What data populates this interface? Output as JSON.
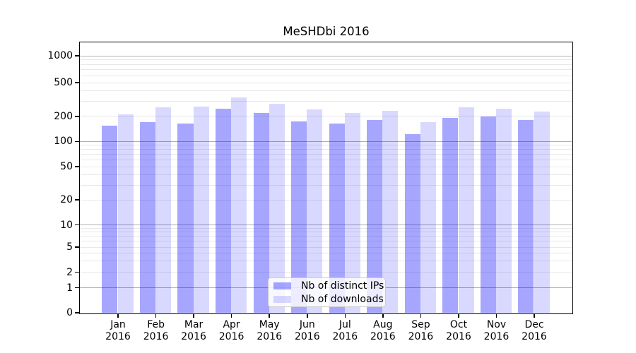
{
  "title": "MeSHDbi 2016",
  "chart_data": {
    "type": "bar",
    "title": "MeSHDbi 2016",
    "categories": [
      "Jan",
      "Feb",
      "Mar",
      "Apr",
      "May",
      "Jun",
      "Jul",
      "Aug",
      "Sep",
      "Oct",
      "Nov",
      "Dec"
    ],
    "year_label": "2016",
    "series": [
      {
        "name": "Nb of distinct IPs",
        "color": "#0000ff",
        "alpha": 0.35,
        "rendered_color": "#a6a6ff",
        "values": [
          155,
          169,
          163,
          248,
          220,
          175,
          164,
          181,
          123,
          192,
          198,
          180
        ]
      },
      {
        "name": "Nb of downloads",
        "color": "#0000ff",
        "alpha": 0.15,
        "rendered_color": "#d9d9ff",
        "values": [
          213,
          256,
          260,
          333,
          284,
          243,
          219,
          232,
          169,
          256,
          248,
          229
        ]
      }
    ],
    "xlabel": "",
    "ylabel": "",
    "yscale": "symlog",
    "yticks": [
      0,
      1,
      2,
      5,
      10,
      20,
      50,
      100,
      200,
      500,
      1000
    ],
    "ylim": [
      0,
      1400
    ],
    "grid": true,
    "legend_position": "lower center",
    "grid_major_color": "#b0b0b0",
    "grid_minor_color": "#e8e8e8"
  }
}
